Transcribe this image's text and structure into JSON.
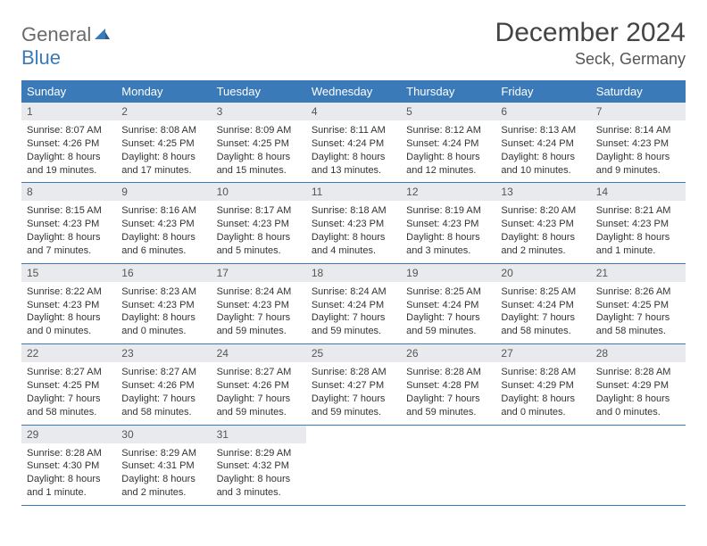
{
  "logo": {
    "part1": "General",
    "part2": "Blue"
  },
  "title": "December 2024",
  "location": "Seck, Germany",
  "colors": {
    "header_bg": "#3a7ab8",
    "header_text": "#ffffff",
    "daynum_bg": "#e8eaed",
    "border": "#3a7ab8",
    "body_text": "#333333",
    "title_text": "#444444",
    "logo_gray": "#6a6a6a",
    "logo_blue": "#3a7ab8"
  },
  "typography": {
    "title_fontsize": 30,
    "location_fontsize": 18,
    "dayheader_fontsize": 13,
    "daynum_fontsize": 12,
    "body_fontsize": 11
  },
  "layout": {
    "columns": 7,
    "rows": 5
  },
  "day_headers": [
    "Sunday",
    "Monday",
    "Tuesday",
    "Wednesday",
    "Thursday",
    "Friday",
    "Saturday"
  ],
  "days": [
    {
      "n": "1",
      "sunrise": "Sunrise: 8:07 AM",
      "sunset": "Sunset: 4:26 PM",
      "daylight": "Daylight: 8 hours and 19 minutes."
    },
    {
      "n": "2",
      "sunrise": "Sunrise: 8:08 AM",
      "sunset": "Sunset: 4:25 PM",
      "daylight": "Daylight: 8 hours and 17 minutes."
    },
    {
      "n": "3",
      "sunrise": "Sunrise: 8:09 AM",
      "sunset": "Sunset: 4:25 PM",
      "daylight": "Daylight: 8 hours and 15 minutes."
    },
    {
      "n": "4",
      "sunrise": "Sunrise: 8:11 AM",
      "sunset": "Sunset: 4:24 PM",
      "daylight": "Daylight: 8 hours and 13 minutes."
    },
    {
      "n": "5",
      "sunrise": "Sunrise: 8:12 AM",
      "sunset": "Sunset: 4:24 PM",
      "daylight": "Daylight: 8 hours and 12 minutes."
    },
    {
      "n": "6",
      "sunrise": "Sunrise: 8:13 AM",
      "sunset": "Sunset: 4:24 PM",
      "daylight": "Daylight: 8 hours and 10 minutes."
    },
    {
      "n": "7",
      "sunrise": "Sunrise: 8:14 AM",
      "sunset": "Sunset: 4:23 PM",
      "daylight": "Daylight: 8 hours and 9 minutes."
    },
    {
      "n": "8",
      "sunrise": "Sunrise: 8:15 AM",
      "sunset": "Sunset: 4:23 PM",
      "daylight": "Daylight: 8 hours and 7 minutes."
    },
    {
      "n": "9",
      "sunrise": "Sunrise: 8:16 AM",
      "sunset": "Sunset: 4:23 PM",
      "daylight": "Daylight: 8 hours and 6 minutes."
    },
    {
      "n": "10",
      "sunrise": "Sunrise: 8:17 AM",
      "sunset": "Sunset: 4:23 PM",
      "daylight": "Daylight: 8 hours and 5 minutes."
    },
    {
      "n": "11",
      "sunrise": "Sunrise: 8:18 AM",
      "sunset": "Sunset: 4:23 PM",
      "daylight": "Daylight: 8 hours and 4 minutes."
    },
    {
      "n": "12",
      "sunrise": "Sunrise: 8:19 AM",
      "sunset": "Sunset: 4:23 PM",
      "daylight": "Daylight: 8 hours and 3 minutes."
    },
    {
      "n": "13",
      "sunrise": "Sunrise: 8:20 AM",
      "sunset": "Sunset: 4:23 PM",
      "daylight": "Daylight: 8 hours and 2 minutes."
    },
    {
      "n": "14",
      "sunrise": "Sunrise: 8:21 AM",
      "sunset": "Sunset: 4:23 PM",
      "daylight": "Daylight: 8 hours and 1 minute."
    },
    {
      "n": "15",
      "sunrise": "Sunrise: 8:22 AM",
      "sunset": "Sunset: 4:23 PM",
      "daylight": "Daylight: 8 hours and 0 minutes."
    },
    {
      "n": "16",
      "sunrise": "Sunrise: 8:23 AM",
      "sunset": "Sunset: 4:23 PM",
      "daylight": "Daylight: 8 hours and 0 minutes."
    },
    {
      "n": "17",
      "sunrise": "Sunrise: 8:24 AM",
      "sunset": "Sunset: 4:23 PM",
      "daylight": "Daylight: 7 hours and 59 minutes."
    },
    {
      "n": "18",
      "sunrise": "Sunrise: 8:24 AM",
      "sunset": "Sunset: 4:24 PM",
      "daylight": "Daylight: 7 hours and 59 minutes."
    },
    {
      "n": "19",
      "sunrise": "Sunrise: 8:25 AM",
      "sunset": "Sunset: 4:24 PM",
      "daylight": "Daylight: 7 hours and 59 minutes."
    },
    {
      "n": "20",
      "sunrise": "Sunrise: 8:25 AM",
      "sunset": "Sunset: 4:24 PM",
      "daylight": "Daylight: 7 hours and 58 minutes."
    },
    {
      "n": "21",
      "sunrise": "Sunrise: 8:26 AM",
      "sunset": "Sunset: 4:25 PM",
      "daylight": "Daylight: 7 hours and 58 minutes."
    },
    {
      "n": "22",
      "sunrise": "Sunrise: 8:27 AM",
      "sunset": "Sunset: 4:25 PM",
      "daylight": "Daylight: 7 hours and 58 minutes."
    },
    {
      "n": "23",
      "sunrise": "Sunrise: 8:27 AM",
      "sunset": "Sunset: 4:26 PM",
      "daylight": "Daylight: 7 hours and 58 minutes."
    },
    {
      "n": "24",
      "sunrise": "Sunrise: 8:27 AM",
      "sunset": "Sunset: 4:26 PM",
      "daylight": "Daylight: 7 hours and 59 minutes."
    },
    {
      "n": "25",
      "sunrise": "Sunrise: 8:28 AM",
      "sunset": "Sunset: 4:27 PM",
      "daylight": "Daylight: 7 hours and 59 minutes."
    },
    {
      "n": "26",
      "sunrise": "Sunrise: 8:28 AM",
      "sunset": "Sunset: 4:28 PM",
      "daylight": "Daylight: 7 hours and 59 minutes."
    },
    {
      "n": "27",
      "sunrise": "Sunrise: 8:28 AM",
      "sunset": "Sunset: 4:29 PM",
      "daylight": "Daylight: 8 hours and 0 minutes."
    },
    {
      "n": "28",
      "sunrise": "Sunrise: 8:28 AM",
      "sunset": "Sunset: 4:29 PM",
      "daylight": "Daylight: 8 hours and 0 minutes."
    },
    {
      "n": "29",
      "sunrise": "Sunrise: 8:28 AM",
      "sunset": "Sunset: 4:30 PM",
      "daylight": "Daylight: 8 hours and 1 minute."
    },
    {
      "n": "30",
      "sunrise": "Sunrise: 8:29 AM",
      "sunset": "Sunset: 4:31 PM",
      "daylight": "Daylight: 8 hours and 2 minutes."
    },
    {
      "n": "31",
      "sunrise": "Sunrise: 8:29 AM",
      "sunset": "Sunset: 4:32 PM",
      "daylight": "Daylight: 8 hours and 3 minutes."
    }
  ]
}
